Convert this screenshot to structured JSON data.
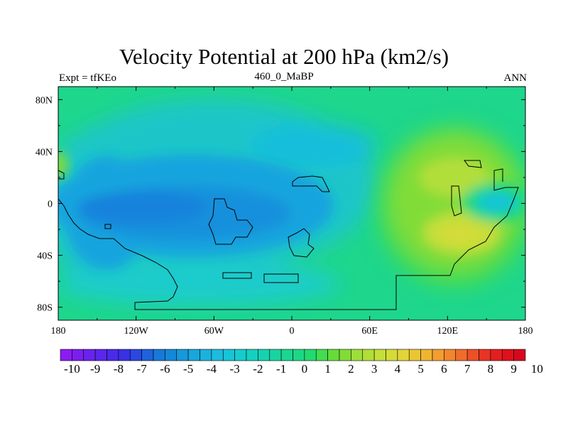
{
  "chart_data": {
    "type": "heatmap",
    "title": "Velocity Potential at 200 hPa (km2/s)",
    "subtitle_left": "Expt = tfKEo",
    "subtitle_center": "460_0_MaBP",
    "subtitle_right": "ANN",
    "x_ticks": [
      "180",
      "120W",
      "60W",
      "0",
      "60E",
      "120E",
      "180"
    ],
    "y_ticks": [
      "80N",
      "40N",
      "0",
      "40S",
      "80S"
    ],
    "xlim": [
      -180,
      180
    ],
    "ylim": [
      -90,
      90
    ],
    "colorbar": {
      "labels": [
        "-10",
        "-9",
        "-8",
        "-7",
        "-6",
        "-5",
        "-4",
        "-3",
        "-2",
        "-1",
        "0",
        "1",
        "2",
        "3",
        "4",
        "5",
        "6",
        "7",
        "8",
        "9",
        "10"
      ],
      "colors": [
        "#8a1cf0",
        "#7a1ef0",
        "#6a22ee",
        "#5a26ec",
        "#4a2ae8",
        "#3a30e4",
        "#2a48e0",
        "#1e62dc",
        "#1878da",
        "#1488d8",
        "#1698da",
        "#18a6dc",
        "#1ab2dc",
        "#1cbcdc",
        "#18c4d8",
        "#14ccce",
        "#14d0c0",
        "#16d2b0",
        "#18d4a0",
        "#1ad690",
        "#1cd884",
        "#22da72",
        "#44dc50",
        "#66dc3a",
        "#82dc38",
        "#9ede3a",
        "#b2de3a",
        "#c4de3a",
        "#d4dc38",
        "#e2d438",
        "#eac634",
        "#f0b432",
        "#f29e30",
        "#f2862e",
        "#f06c2c",
        "#ec5028",
        "#e83424",
        "#e41e20",
        "#e0101c",
        "#d8081c"
      ]
    },
    "field_features": [
      {
        "name": "broad-minimum",
        "lon": -45,
        "lat": -10,
        "value": -5
      },
      {
        "name": "maximum-center",
        "lon": 130,
        "lat": -20,
        "value": 4
      },
      {
        "name": "maximum-north",
        "lon": 120,
        "lat": 20,
        "value": 3.5
      },
      {
        "name": "local-minimum",
        "lon": 150,
        "lat": 0,
        "value": -2
      },
      {
        "name": "arctic-band",
        "lon": 0,
        "lat": 80,
        "value": 1
      },
      {
        "name": "antarctic-band",
        "lon": 0,
        "lat": -85,
        "value": 0.5
      }
    ]
  }
}
